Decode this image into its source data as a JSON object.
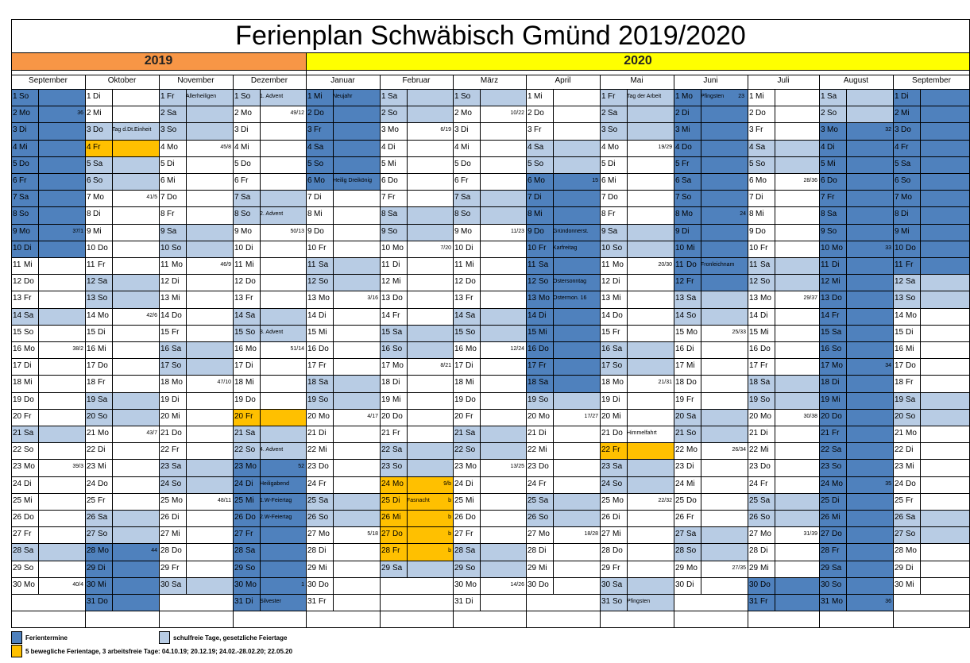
{
  "title": "Ferienplan Schwäbisch Gmünd 2019/2020",
  "years": [
    {
      "label": "2019",
      "color": "#f79646"
    },
    {
      "label": "2020",
      "color": "#ffff00"
    }
  ],
  "colors": {
    "ferien": "#4f81bd",
    "frei": "#b8cce4",
    "beweglich": "#ffc000",
    "white": "#ffffff"
  },
  "legend": [
    {
      "type": "ferien",
      "label": "Ferientermine"
    },
    {
      "type": "frei",
      "label": "schulfreie Tage, gesetzliche Feiertage"
    },
    {
      "type": "beweglich",
      "label": "5 bewegliche Ferientage, 3 arbeitsfreie Tage: 04.10.19; 20.12.19; 24.02.-28.02.20; 22.05.20"
    }
  ],
  "months": [
    {
      "name": "September",
      "start": "2019-09-01",
      "days": 30,
      "ferien": [
        1,
        2,
        3,
        4,
        5,
        6,
        7,
        8,
        9,
        10
      ],
      "frei": [
        14,
        21,
        28
      ],
      "weeks": {
        "2": "36",
        "9": "37/1",
        "16": "38/2",
        "23": "39/3",
        "30": "40/4"
      },
      "extras": {}
    },
    {
      "name": "Oktober",
      "start": "2019-10-01",
      "days": 31,
      "ferien": [
        28,
        29,
        30,
        31
      ],
      "frei": [
        3,
        5,
        6,
        12,
        13,
        19,
        20,
        26,
        27
      ],
      "beweglich": [
        4
      ],
      "weeks": {
        "7": "41/5",
        "14": "42/6",
        "21": "43/7",
        "28": "44"
      },
      "extras": {
        "3": "Tag d.Dt.Einheit"
      }
    },
    {
      "name": "November",
      "start": "2019-11-01",
      "days": 30,
      "ferien": [],
      "frei": [
        1,
        2,
        3,
        9,
        10,
        16,
        17,
        23,
        24,
        30
      ],
      "weeks": {
        "4": "45/8",
        "11": "46/9",
        "18": "47/10",
        "25": "48/11"
      },
      "extras": {
        "1": "Allerheiligen"
      }
    },
    {
      "name": "Dezember",
      "start": "2019-12-01",
      "days": 31,
      "ferien": [
        23,
        24,
        25,
        26,
        27,
        28,
        29,
        30,
        31
      ],
      "frei": [
        1,
        7,
        8,
        14,
        15,
        21,
        22
      ],
      "beweglich": [
        20
      ],
      "weeks": {
        "2": "49/12",
        "9": "50/13",
        "16": "51/14",
        "23": "52",
        "30": "1"
      },
      "extras": {
        "1": "1. Advent",
        "8": "2. Advent",
        "15": "3. Advent",
        "22": "4. Advent",
        "24": "Heiligabend",
        "25": "1.W-Feiertag",
        "26": "2.W-Feiertag",
        "31": "Silvester"
      }
    },
    {
      "name": "Januar",
      "start": "2020-01-01",
      "days": 31,
      "ferien": [
        1,
        2,
        3,
        4,
        5,
        6
      ],
      "frei": [
        11,
        12,
        18,
        19,
        25,
        26
      ],
      "weeks": {
        "6": "",
        "13": "3/16",
        "20": "4/17",
        "27": "5/18"
      },
      "extras": {
        "1": "Neujahr",
        "6": "Heilig Dreikönig"
      }
    },
    {
      "name": "Februar",
      "start": "2020-02-01",
      "days": 29,
      "ferien": [],
      "frei": [
        1,
        2,
        8,
        9,
        15,
        16,
        22,
        23,
        29
      ],
      "beweglich": [
        24,
        25,
        26,
        27,
        28
      ],
      "weeks": {
        "3": "6/19",
        "10": "7/20",
        "17": "8/21",
        "24": "9/b"
      },
      "extras": {
        "25": "Fasnacht",
        "25b": "b",
        "26b": "b",
        "27b": "b",
        "28b": "b"
      }
    },
    {
      "name": "März",
      "start": "2020-03-01",
      "days": 31,
      "ferien": [],
      "frei": [
        1,
        7,
        8,
        14,
        15,
        21,
        22,
        28,
        29
      ],
      "weeks": {
        "2": "10/22",
        "9": "11/23",
        "16": "12/24",
        "23": "13/25",
        "30": "14/26"
      },
      "extras": {}
    },
    {
      "name": "April",
      "start": "2020-04-01",
      "days": 30,
      "ferien": [
        6,
        7,
        8,
        9,
        10,
        11,
        12,
        13,
        14,
        15,
        16,
        17,
        18
      ],
      "frei": [
        4,
        5,
        19,
        25,
        26
      ],
      "weeks": {
        "6": "15",
        "20": "17/27",
        "27": "18/28"
      },
      "extras": {
        "9": "Gründonnerst.",
        "10": "Karfreitag",
        "12": "Ostersonntag",
        "13": "Ostermon. 16"
      }
    },
    {
      "name": "Mai",
      "start": "2020-05-01",
      "days": 31,
      "ferien": [],
      "frei": [
        1,
        2,
        3,
        9,
        10,
        16,
        17,
        23,
        24,
        30,
        31
      ],
      "beweglich": [
        22
      ],
      "weeks": {
        "4": "19/29",
        "11": "20/30",
        "18": "21/31",
        "25": "22/32"
      },
      "extras": {
        "1": "Tag der Arbeit",
        "21": "Himmelfahrt",
        "31": "Pfingsten"
      }
    },
    {
      "name": "Juni",
      "start": "2020-06-01",
      "days": 30,
      "ferien": [
        1,
        2,
        3,
        4,
        5,
        6,
        7,
        8,
        9,
        10,
        11,
        12
      ],
      "frei": [
        13,
        14,
        20,
        21,
        27,
        28
      ],
      "weeks": {
        "8": "24",
        "15": "25/33",
        "22": "26/34",
        "29": "27/35"
      },
      "extras": {
        "1": "Pfingsten",
        "1w": "23",
        "11": "Fronleichnam"
      }
    },
    {
      "name": "Juli",
      "start": "2020-07-01",
      "days": 31,
      "ferien": [
        30,
        31
      ],
      "frei": [
        4,
        5,
        11,
        12,
        18,
        19,
        25,
        26
      ],
      "weeks": {
        "6": "28/36",
        "13": "29/37",
        "20": "30/38",
        "27": "31/39"
      },
      "extras": {}
    },
    {
      "name": "August",
      "start": "2020-08-01",
      "days": 31,
      "ferien": [
        3,
        4,
        5,
        6,
        7,
        8,
        9,
        10,
        11,
        12,
        13,
        14,
        15,
        16,
        17,
        18,
        19,
        20,
        21,
        22,
        23,
        24,
        25,
        26,
        27,
        28,
        29,
        30,
        31
      ],
      "frei": [
        1,
        2
      ],
      "weeks": {
        "3": "32",
        "10": "33",
        "17": "34",
        "24": "35",
        "31": "36"
      },
      "extras": {}
    },
    {
      "name": "September",
      "start": "2020-09-01",
      "days": 30,
      "ferien": [
        1,
        2,
        3,
        4,
        5,
        6,
        7,
        8,
        9,
        10,
        11
      ],
      "frei": [
        12,
        13,
        19,
        20,
        26,
        27
      ],
      "weeks": {},
      "extras": {}
    }
  ],
  "weekday_names": [
    "So",
    "Mo",
    "Di",
    "Mi",
    "Do",
    "Fr",
    "Sa"
  ]
}
